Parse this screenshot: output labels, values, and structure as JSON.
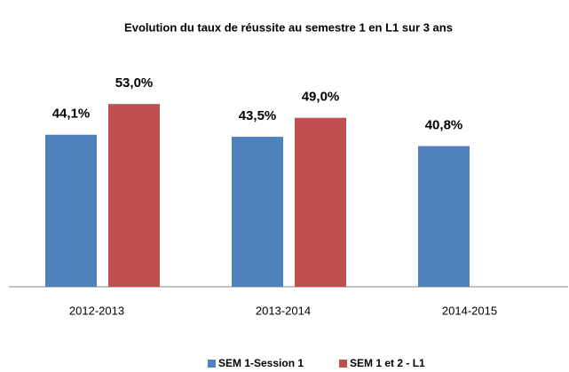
{
  "chart_data": {
    "type": "bar",
    "title": "Evolution du taux de réussite  au semestre 1 en L1 sur 3 ans",
    "categories": [
      "2012-2013",
      "2013-2014",
      "2014-2015"
    ],
    "series": [
      {
        "name": "SEM 1-Session 1",
        "color": "#4f81bd",
        "values": [
          44.1,
          43.5,
          40.8
        ],
        "value_labels": [
          "44,1%",
          "43,5%",
          "40,8%"
        ]
      },
      {
        "name": "SEM 1 et 2 - L1",
        "color": "#c0504d",
        "values": [
          53.0,
          49.0,
          null
        ],
        "value_labels": [
          "53,0%",
          "49,0%",
          null
        ]
      }
    ],
    "ylim": [
      0,
      60
    ],
    "legend": "bottom"
  }
}
